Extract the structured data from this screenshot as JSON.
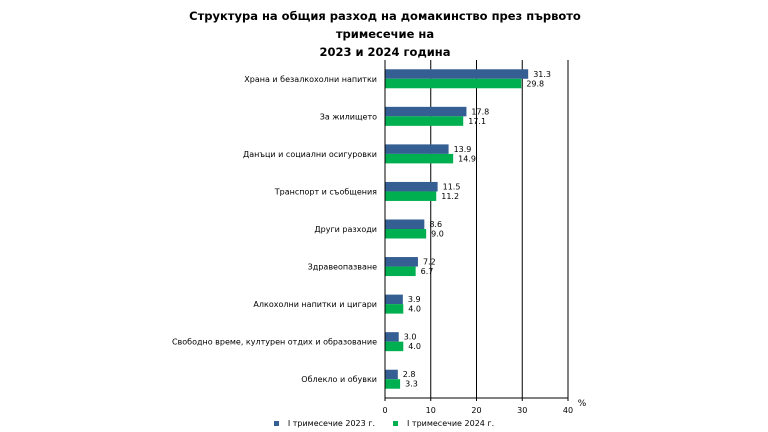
{
  "chart_data": {
    "type": "bar",
    "orientation": "horizontal",
    "title": "Структура на общия разход на домакинство през първото тримесечие на 2023 и 2024 година",
    "title_lines": [
      "Структура на общия разход на домакинство през първото тримесечие на",
      "2023 и 2024 година"
    ],
    "categories": [
      "Храна и безалкохолни напитки",
      "За жилището",
      "Данъци и социални осигуровки",
      "Транспорт и съобщения",
      "Други разходи",
      "Здравеопазване",
      "Алкохолни напитки и цигари",
      "Свободно време, културен отдих и образование",
      "Облекло и обувки"
    ],
    "series": [
      {
        "name": "I тримесечие 2023 г.",
        "color": "#355e93",
        "values": [
          31.3,
          17.8,
          13.9,
          11.5,
          8.6,
          7.2,
          3.9,
          3.0,
          2.8
        ],
        "labels": [
          "31.3",
          "17.8",
          "13.9",
          "11.5",
          "8.6",
          "7.2",
          "3.9",
          "3.0",
          "2.8"
        ]
      },
      {
        "name": "I тримесечие 2024 г.",
        "color": "#00b050",
        "values": [
          29.8,
          17.1,
          14.9,
          11.2,
          9.0,
          6.7,
          4.0,
          4.0,
          3.3
        ],
        "labels": [
          "29.8",
          "17.1",
          "14.9",
          "11.2",
          "9.0",
          "6.7",
          "4.0",
          "4.0",
          "3.3"
        ]
      }
    ],
    "x_ticks": [
      "0",
      "10",
      "20",
      "30",
      "40"
    ],
    "xlim": [
      0,
      40
    ],
    "unit_label": "%",
    "grid": true,
    "legend_position": "bottom"
  }
}
